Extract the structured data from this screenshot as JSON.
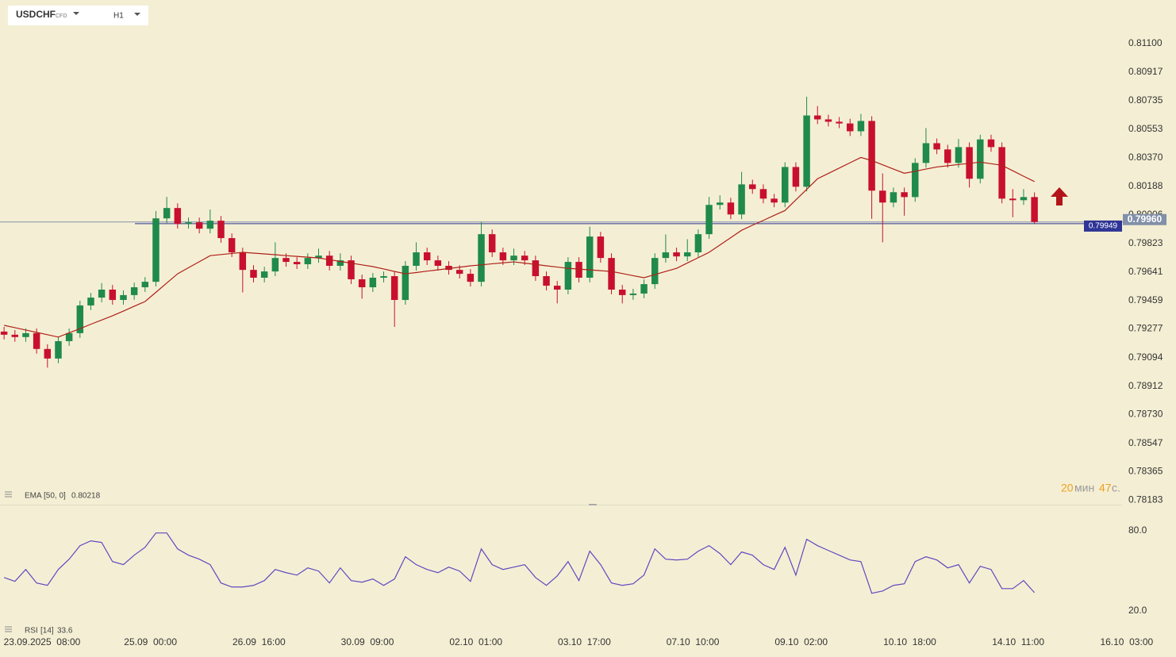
{
  "header": {
    "symbol": "USDCHF",
    "instrument_type": "CFD",
    "timeframe": "H1"
  },
  "chart_data": {
    "type": "candlestick",
    "up_color": "#1f8a4c",
    "down_color": "#c8102e",
    "x": [
      -14,
      -10,
      -6,
      -2,
      2,
      6,
      10,
      14,
      18,
      22,
      26,
      30,
      34,
      38,
      42,
      46,
      50,
      54,
      58,
      62,
      66,
      70,
      74,
      78,
      82,
      86,
      90,
      94,
      98,
      102,
      106,
      110,
      114,
      118,
      122,
      126,
      130,
      134,
      138,
      142,
      146,
      150,
      154,
      158,
      162,
      166,
      170,
      174,
      178,
      182,
      186,
      190,
      194,
      198,
      202,
      206,
      210,
      214,
      218,
      222,
      226,
      230,
      234,
      238,
      242,
      246,
      250,
      254,
      258,
      262,
      266,
      270,
      274,
      278,
      282,
      286,
      290,
      294,
      298,
      302,
      306,
      310,
      314,
      318,
      322,
      326,
      330,
      334,
      338,
      342,
      346,
      350,
      354,
      358,
      362,
      366
    ],
    "open": [
      0.7926,
      0.7924,
      0.79225,
      0.7925,
      0.79149,
      0.79088,
      0.79199,
      0.7925,
      0.79427,
      0.79477,
      0.79528,
      0.79462,
      0.79493,
      0.79543,
      0.79578,
      0.79983,
      0.80049,
      0.79948,
      0.79958,
      0.79917,
      0.79968,
      0.79857,
      0.79766,
      0.79654,
      0.79604,
      0.79644,
      0.7973,
      0.79705,
      0.7969,
      0.7973,
      0.79745,
      0.7968,
      0.79715,
      0.79594,
      0.79543,
      0.79604,
      0.79614,
      0.79462,
      0.7968,
      0.79766,
      0.79715,
      0.7968,
      0.79654,
      0.79629,
      0.79578,
      0.79882,
      0.79766,
      0.79715,
      0.79745,
      0.79715,
      0.79614,
      0.79553,
      0.79528,
      0.79705,
      0.79604,
      0.79867,
      0.7973,
      0.79528,
      0.79493,
      0.79503,
      0.79563,
      0.7973,
      0.79766,
      0.7974,
      0.79766,
      0.79882,
      0.80069,
      0.80084,
      0.80008,
      0.802,
      0.8017,
      0.80109,
      0.80084,
      0.80311,
      0.80185,
      0.8064,
      0.80615,
      0.806,
      0.80589,
      0.80539,
      0.80605,
      0.8016,
      0.80084,
      0.8015,
      0.80119,
      0.80337,
      0.80463,
      0.80423,
      0.80337,
      0.80438,
      0.80236,
      0.80487,
      0.80438,
      0.80109,
      0.80099,
      0.80119
    ],
    "high": [
      0.7929,
      0.7927,
      0.7928,
      0.7928,
      0.79179,
      0.79229,
      0.7928,
      0.79457,
      0.79507,
      0.7957,
      0.79558,
      0.79523,
      0.79573,
      0.79608,
      0.8003,
      0.8012,
      0.80079,
      0.79988,
      0.79988,
      0.8004,
      0.79998,
      0.79887,
      0.79796,
      0.79684,
      0.79674,
      0.7983,
      0.7976,
      0.79735,
      0.7976,
      0.7979,
      0.79775,
      0.7976,
      0.79745,
      0.79624,
      0.79634,
      0.79644,
      0.79644,
      0.7971,
      0.7983,
      0.79796,
      0.79745,
      0.7971,
      0.79684,
      0.79659,
      0.7996,
      0.79912,
      0.79796,
      0.7979,
      0.79775,
      0.79745,
      0.79644,
      0.79583,
      0.79735,
      0.79735,
      0.7993,
      0.79897,
      0.7976,
      0.79558,
      0.79533,
      0.79593,
      0.7976,
      0.7988,
      0.79796,
      0.7985,
      0.79912,
      0.8012,
      0.8013,
      0.80114,
      0.8028,
      0.8023,
      0.802,
      0.80139,
      0.80341,
      0.80341,
      0.8076,
      0.807,
      0.80645,
      0.8063,
      0.80619,
      0.8065,
      0.80635,
      0.8027,
      0.8018,
      0.8018,
      0.80367,
      0.8056,
      0.80493,
      0.80453,
      0.8049,
      0.80468,
      0.80517,
      0.80517,
      0.80468,
      0.8017,
      0.8017,
      0.80149
    ],
    "low": [
      0.7921,
      0.79195,
      0.79195,
      0.79119,
      0.7903,
      0.79058,
      0.79169,
      0.7922,
      0.79397,
      0.79447,
      0.79432,
      0.79432,
      0.79463,
      0.79513,
      0.79548,
      0.79953,
      0.79918,
      0.79918,
      0.79887,
      0.79887,
      0.79827,
      0.79736,
      0.7951,
      0.79574,
      0.79574,
      0.79614,
      0.79675,
      0.7966,
      0.7966,
      0.797,
      0.7965,
      0.7965,
      0.79564,
      0.7947,
      0.79513,
      0.79574,
      0.7929,
      0.79432,
      0.7965,
      0.79685,
      0.7965,
      0.79624,
      0.79599,
      0.79548,
      0.79548,
      0.79736,
      0.79685,
      0.79685,
      0.79685,
      0.79584,
      0.79523,
      0.7944,
      0.79498,
      0.79574,
      0.79574,
      0.797,
      0.79498,
      0.7944,
      0.79463,
      0.79473,
      0.79533,
      0.797,
      0.7971,
      0.7971,
      0.79736,
      0.79852,
      0.80039,
      0.79978,
      0.79978,
      0.8014,
      0.80079,
      0.80054,
      0.80054,
      0.80155,
      0.80155,
      0.80585,
      0.8057,
      0.80559,
      0.80509,
      0.80509,
      0.7998,
      0.7983,
      0.80054,
      0.8,
      0.80089,
      0.80307,
      0.80393,
      0.80307,
      0.80307,
      0.8018,
      0.80206,
      0.80408,
      0.80079,
      0.7999,
      0.80069,
      0.7995
    ],
    "close": [
      0.7924,
      0.79225,
      0.7925,
      0.79149,
      0.79088,
      0.79199,
      0.7925,
      0.79427,
      0.79477,
      0.79528,
      0.79462,
      0.79493,
      0.79543,
      0.79578,
      0.79983,
      0.80049,
      0.79948,
      0.79958,
      0.79917,
      0.79968,
      0.79857,
      0.79766,
      0.79654,
      0.79604,
      0.79644,
      0.7973,
      0.79705,
      0.7969,
      0.7973,
      0.79745,
      0.7968,
      0.79715,
      0.79594,
      0.79543,
      0.79604,
      0.79614,
      0.79462,
      0.7968,
      0.79766,
      0.79715,
      0.7968,
      0.79654,
      0.79629,
      0.79578,
      0.79882,
      0.79766,
      0.79715,
      0.79745,
      0.79715,
      0.79614,
      0.79553,
      0.79528,
      0.79705,
      0.79604,
      0.79867,
      0.7973,
      0.79528,
      0.79493,
      0.79503,
      0.79563,
      0.7973,
      0.79766,
      0.7974,
      0.79766,
      0.79882,
      0.80069,
      0.80084,
      0.80008,
      0.802,
      0.8017,
      0.80109,
      0.80084,
      0.80311,
      0.80185,
      0.8064,
      0.80615,
      0.806,
      0.80589,
      0.80539,
      0.80605,
      0.8016,
      0.80084,
      0.8015,
      0.80119,
      0.80337,
      0.80463,
      0.80423,
      0.80337,
      0.80438,
      0.80236,
      0.80487,
      0.80438,
      0.80109,
      0.80099,
      0.80119,
      0.7996
    ],
    "series": [
      {
        "name": "EMA",
        "params": "[50, 0]",
        "value_label": "0.80218",
        "color": "#b0201a",
        "values": [
          0.793,
          0.79285,
          0.7927,
          0.79255,
          0.7924,
          0.79225,
          0.79252,
          0.79279,
          0.79307,
          0.79334,
          0.79361,
          0.79391,
          0.79422,
          0.79452,
          0.79511,
          0.7957,
          0.79629,
          0.79668,
          0.79706,
          0.79745,
          0.79752,
          0.79759,
          0.79766,
          0.79761,
          0.79756,
          0.79751,
          0.79745,
          0.7974,
          0.79735,
          0.7973,
          0.79719,
          0.79708,
          0.79697,
          0.79686,
          0.79675,
          0.7966,
          0.79644,
          0.79629,
          0.79637,
          0.79646,
          0.79654,
          0.79663,
          0.79671,
          0.7968,
          0.79686,
          0.79693,
          0.79699,
          0.79705,
          0.79697,
          0.79689,
          0.7968,
          0.79672,
          0.79664,
          0.79659,
          0.79654,
          0.79649,
          0.79644,
          0.79631,
          0.79617,
          0.79604,
          0.79624,
          0.79644,
          0.79664,
          0.79698,
          0.79732,
          0.79766,
          0.79813,
          0.7986,
          0.79907,
          0.79939,
          0.7997,
          0.80002,
          0.80033,
          0.80101,
          0.80168,
          0.80236,
          0.8027,
          0.80304,
          0.80338,
          0.80372,
          0.80352,
          0.80325,
          0.80298,
          0.80271,
          0.80284,
          0.80298,
          0.80311,
          0.80319,
          0.80327,
          0.80334,
          0.80342,
          0.80332,
          0.80322,
          0.80287,
          0.80252,
          0.80218
        ]
      }
    ],
    "xlim": [
      -15.5,
      418.2
    ],
    "xticks": [
      {
        "value": 0,
        "label": "23.09.2025  08:00"
      },
      {
        "value": 40,
        "label": "25.09  00:00"
      },
      {
        "value": 80,
        "label": "26.09  16:00"
      },
      {
        "value": 120,
        "label": "30.09  09:00"
      },
      {
        "value": 160,
        "label": "02.10  01:00"
      },
      {
        "value": 200,
        "label": "03.10  17:00"
      },
      {
        "value": 240,
        "label": "07.10  10:00"
      },
      {
        "value": 280,
        "label": "09.10  02:00"
      },
      {
        "value": 320,
        "label": "10.10  18:00"
      },
      {
        "value": 360,
        "label": "14.10  11:00"
      },
      {
        "value": 400,
        "label": "16.10  03:00"
      }
    ],
    "ylim": [
      0.7816,
      0.812
    ],
    "yticks": [
      {
        "value": 0.811,
        "label": "0.81100"
      },
      0.80917,
      0.80735,
      0.80553,
      {
        "value": 0.8037,
        "label": "0.80370"
      },
      0.80188,
      0.80006,
      0.79823,
      0.79641,
      0.79459,
      0.79277,
      0.79094,
      0.78912,
      {
        "value": 0.7873,
        "label": "0.78730"
      },
      0.78547,
      0.78365,
      0.78183
    ],
    "price_lines": [
      {
        "value": 0.79949,
        "label": "0.79949",
        "color": "#2e3596"
      },
      {
        "value": 0.7996,
        "label": "0.79960",
        "color": "#8290a8"
      }
    ],
    "rsi_panel": {
      "type": "line",
      "ylim": [
        8,
        97
      ],
      "yticks": [
        {
          "value": 80,
          "label": "80.0"
        },
        {
          "value": 20,
          "label": "20.0"
        }
      ],
      "series": [
        {
          "name": "RSI",
          "params": "[14]",
          "value_label": "33.6",
          "color": "#6048c0",
          "values": [
            44.9,
            42.0,
            50.9,
            40.8,
            39.0,
            50.9,
            58.6,
            68.7,
            72.3,
            71.1,
            56.8,
            54.5,
            61.6,
            67.5,
            78.2,
            78.2,
            66.3,
            61.6,
            58.6,
            54.5,
            40.8,
            37.8,
            37.8,
            39.0,
            42.6,
            50.9,
            48.5,
            46.7,
            52.1,
            49.7,
            40.8,
            52.1,
            42.6,
            41.4,
            43.8,
            39.0,
            43.8,
            60.4,
            54.5,
            50.9,
            48.5,
            52.7,
            49.7,
            42.0,
            66.3,
            54.5,
            50.9,
            52.7,
            54.5,
            44.9,
            39.0,
            46.1,
            56.8,
            42.6,
            64.6,
            54.5,
            40.8,
            39.0,
            40.2,
            46.7,
            66.3,
            58.6,
            58.0,
            58.6,
            64.6,
            68.7,
            62.8,
            54.5,
            64.0,
            61.6,
            54.5,
            50.9,
            67.5,
            46.7,
            73.5,
            68.7,
            65.1,
            61.6,
            58.0,
            56.8,
            33.1,
            34.8,
            39.0,
            40.2,
            56.8,
            60.4,
            58.0,
            52.1,
            54.5,
            40.8,
            53.3,
            50.9,
            36.6,
            36.6,
            42.6,
            33.6
          ]
        }
      ]
    }
  },
  "countdown": {
    "minutes": "20",
    "minutes_unit": "мин",
    "seconds": "47",
    "seconds_unit": "с."
  }
}
